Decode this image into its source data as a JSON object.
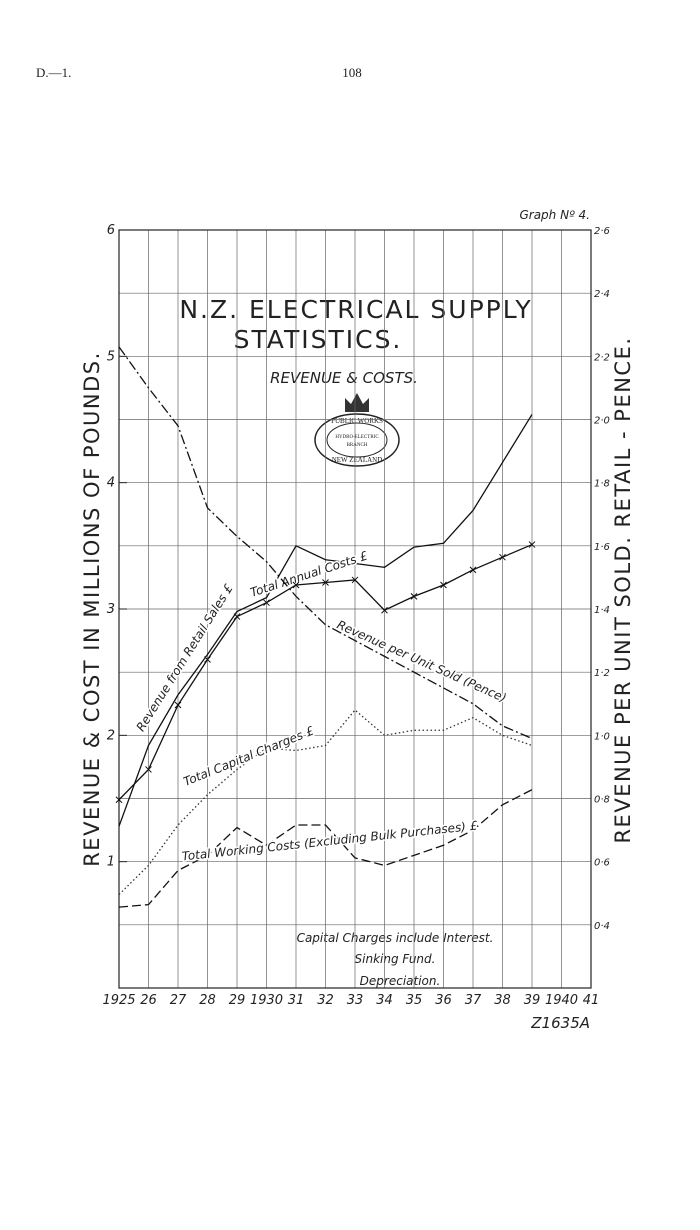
{
  "header": {
    "left": "D.—1.",
    "page": "108"
  },
  "chart_data": {
    "type": "line",
    "graph_label": "Graph Nº 4.",
    "title": "N.Z. ELECTRICAL SUPPLY",
    "title_line2": "STATISTICS.",
    "subtitle": "REVENUE & COSTS.",
    "stamp": [
      "PUBLIC WORKS",
      "HYDRO-ELECTRIC",
      "BRANCH",
      "NEW ZEALAND"
    ],
    "ylabel": "REVENUE & COST IN MILLIONS OF POUNDS.",
    "y2label": "REVENUE PER UNIT SOLD. RETAIL - PENCE.",
    "note": [
      "Capital Charges include Interest.",
      "Sinking Fund.",
      "Depreciation."
    ],
    "reference": "Z1635A",
    "grid": true,
    "xlim": [
      1925,
      1941
    ],
    "xticks": [
      1925,
      {
        "value": 1926,
        "label": "26"
      },
      {
        "value": 1927,
        "label": "27"
      },
      {
        "value": 1928,
        "label": "28"
      },
      {
        "value": 1929,
        "label": "29"
      },
      1930,
      {
        "value": 1931,
        "label": "31"
      },
      {
        "value": 1932,
        "label": "32"
      },
      {
        "value": 1933,
        "label": "33"
      },
      {
        "value": 1934,
        "label": "34"
      },
      {
        "value": 1935,
        "label": "35"
      },
      {
        "value": 1936,
        "label": "36"
      },
      {
        "value": 1937,
        "label": "37"
      },
      {
        "value": 1938,
        "label": "38"
      },
      {
        "value": 1939,
        "label": "39"
      },
      1940,
      {
        "value": 1941,
        "label": "41"
      }
    ],
    "ylim": [
      0,
      6
    ],
    "yticks": [
      1,
      2,
      3,
      4,
      5,
      6
    ],
    "y2lim": [
      0.2,
      2.6
    ],
    "y2ticks": [
      {
        "value": 0.4,
        "label": "0·4"
      },
      {
        "value": 0.6,
        "label": "0·6"
      },
      {
        "value": 0.8,
        "label": "0·8"
      },
      {
        "value": 1.0,
        "label": "1·0"
      },
      {
        "value": 1.2,
        "label": "1·2"
      },
      {
        "value": 1.4,
        "label": "1·4"
      },
      {
        "value": 1.6,
        "label": "1·6"
      },
      {
        "value": 1.8,
        "label": "1·8"
      },
      {
        "value": 2.0,
        "label": "2·0"
      },
      {
        "value": 2.2,
        "label": "2·2"
      },
      {
        "value": 2.4,
        "label": "2·4"
      },
      {
        "value": 2.6,
        "label": "2·6"
      }
    ],
    "x": [
      1925,
      1926,
      1927,
      1928,
      1929,
      1930,
      1931,
      1932,
      1933,
      1934,
      1935,
      1936,
      1937,
      1938,
      1939
    ],
    "series": [
      {
        "name": "Total Annual Costs £",
        "color": "#111",
        "dash": "solid",
        "values": [
          1.28,
          1.92,
          2.32,
          2.64,
          2.98,
          3.09,
          3.5,
          3.39,
          3.36,
          3.33,
          3.49,
          3.52,
          3.78,
          4.16,
          4.54
        ]
      },
      {
        "name": "Revenue from Retail Sales £",
        "color": "#111",
        "dash": "solid",
        "marker": "x",
        "values": [
          1.49,
          1.73,
          2.24,
          2.6,
          2.94,
          3.05,
          3.19,
          3.21,
          3.23,
          2.99,
          3.1,
          3.19,
          3.31,
          3.41,
          3.51
        ]
      },
      {
        "name": "Revenue per Unit Sold (Pence)",
        "color": "#111",
        "dash": "dashdot",
        "axis": "y2",
        "values": [
          2.23,
          2.1,
          1.98,
          1.72,
          1.63,
          1.55,
          1.44,
          1.35,
          1.3,
          1.25,
          1.2,
          1.15,
          1.1,
          1.03,
          0.99
        ]
      },
      {
        "name": "Total Capital Charges £",
        "color": "#333",
        "dash": "dotted",
        "values": [
          0.74,
          0.97,
          1.29,
          1.53,
          1.73,
          1.9,
          1.88,
          1.92,
          2.2,
          2.0,
          2.04,
          2.04,
          2.14,
          2.0,
          1.92
        ]
      },
      {
        "name": "Total Working Costs (Excluding Bulk Purchases) £",
        "color": "#111",
        "dash": "dashed",
        "values": [
          0.64,
          0.66,
          0.93,
          1.05,
          1.27,
          1.13,
          1.29,
          1.29,
          1.03,
          0.97,
          1.05,
          1.13,
          1.25,
          1.45,
          1.57
        ]
      }
    ]
  }
}
